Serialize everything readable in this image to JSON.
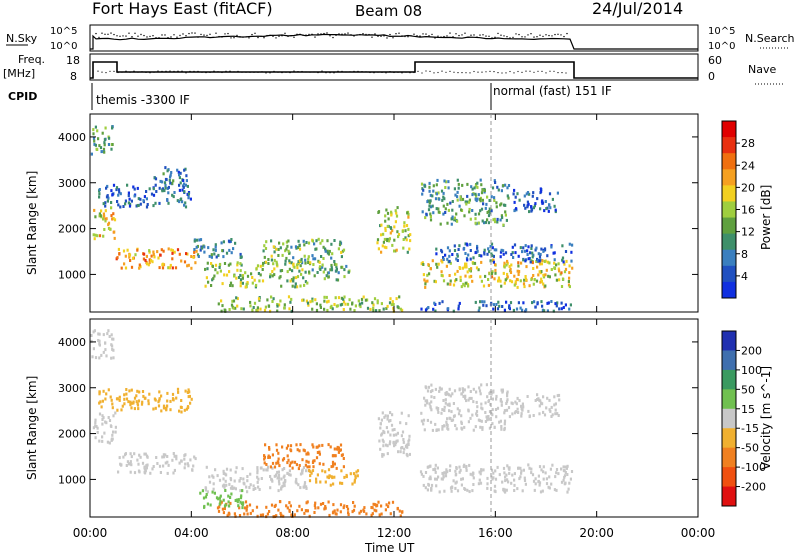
{
  "header": {
    "station": "Fort Hays East (fitACF)",
    "beam": "Beam 08",
    "date": "24/Jul/2014"
  },
  "nsky_panel": {
    "left_label": "N.Sky",
    "left_ticks": [
      "10^5",
      "10^0"
    ],
    "right_ticks": [
      "10^5",
      "10^0"
    ],
    "right_label": "N.Search"
  },
  "freq_panel": {
    "left_label_1": "Freq.",
    "left_label_2": "[MHz]",
    "left_ticks": [
      "18",
      "8"
    ],
    "right_ticks": [
      "60",
      "0"
    ],
    "right_label": "Nave"
  },
  "cpid_panel": {
    "label": "CPID",
    "mode_1": "themis -3300 IF",
    "mode_2": "normal (fast) 151 IF"
  },
  "colors": {
    "scale": [
      "#1030e0",
      "#2050c0",
      "#3a7fbf",
      "#3e8f6a",
      "#5fa03f",
      "#9fce3f",
      "#f2d020",
      "#f5a020",
      "#f07010",
      "#e83010",
      "#e00000"
    ],
    "velocity": [
      "#e01010",
      "#f05010",
      "#f08020",
      "#f0b030",
      "#c8c8c8",
      "#70c050",
      "#3a9a60",
      "#3f6fae",
      "#2030b0"
    ]
  },
  "chart_data": [
    {
      "type": "heatmap",
      "name": "power",
      "ylabel": "Slant Range [km]",
      "yticks": [
        "1000",
        "2000",
        "3000",
        "4000"
      ],
      "ylim": [
        180,
        4500
      ],
      "xlim": [
        "00:00",
        "24:00"
      ],
      "colorbar_label": "Power [dB]",
      "colorbar_ticks": [
        "4",
        "8",
        "12",
        "16",
        "20",
        "24",
        "28"
      ],
      "colorbar_range": [
        0,
        30
      ],
      "blobs": [
        {
          "t": [
            0.0,
            0.9
          ],
          "r": [
            3650,
            4300
          ],
          "v": 11
        },
        {
          "t": [
            0.1,
            1.0
          ],
          "r": [
            1800,
            2500
          ],
          "v": 18
        },
        {
          "t": [
            1.0,
            4.2
          ],
          "r": [
            1150,
            1600
          ],
          "v": 21
        },
        {
          "t": [
            0.3,
            4.0
          ],
          "r": [
            2500,
            3000
          ],
          "v": 6
        },
        {
          "t": [
            2.5,
            3.8
          ],
          "r": [
            2900,
            3400
          ],
          "v": 7
        },
        {
          "t": [
            4.0,
            6.0
          ],
          "r": [
            1400,
            1800
          ],
          "v": 8
        },
        {
          "t": [
            4.5,
            8.6
          ],
          "r": [
            750,
            1300
          ],
          "v": 14
        },
        {
          "t": [
            6.8,
            10.0
          ],
          "r": [
            1250,
            1800
          ],
          "v": 12
        },
        {
          "t": [
            8.6,
            10.6
          ],
          "r": [
            900,
            1250
          ],
          "v": 11
        },
        {
          "t": [
            5.0,
            12.3
          ],
          "r": [
            220,
            550
          ],
          "v": 14
        },
        {
          "t": [
            11.3,
            12.6
          ],
          "r": [
            1500,
            2500
          ],
          "v": 15
        },
        {
          "t": [
            13.0,
            16.5
          ],
          "r": [
            2100,
            3100
          ],
          "v": 10
        },
        {
          "t": [
            13.0,
            19.0
          ],
          "r": [
            750,
            1350
          ],
          "v": 17
        },
        {
          "t": [
            13.5,
            19.0
          ],
          "r": [
            1300,
            1700
          ],
          "v": 5
        },
        {
          "t": [
            16.5,
            18.5
          ],
          "r": [
            2400,
            2900
          ],
          "v": 5
        },
        {
          "t": [
            13.0,
            19.0
          ],
          "r": [
            230,
            450
          ],
          "v": 5
        }
      ]
    },
    {
      "type": "heatmap",
      "name": "velocity",
      "ylabel": "Slant Range [km]",
      "yticks": [
        "1000",
        "2000",
        "3000",
        "4000"
      ],
      "ylim": [
        180,
        4500
      ],
      "xlabel": "Time UT",
      "xticks": [
        "00:00",
        "04:00",
        "08:00",
        "12:00",
        "16:00",
        "20:00",
        "00:00"
      ],
      "xlim": [
        "00:00",
        "24:00"
      ],
      "colorbar_label": "Velocity [m s^-1]",
      "colorbar_ticks": [
        "-200",
        "-100",
        "-50",
        "-15",
        "15",
        "50",
        "100",
        "200"
      ],
      "colorbar_range": [
        -250,
        250
      ],
      "blobs": [
        {
          "t": [
            0.0,
            0.9
          ],
          "r": [
            3650,
            4300
          ],
          "v": 0
        },
        {
          "t": [
            0.1,
            1.0
          ],
          "r": [
            1800,
            2500
          ],
          "v": -5
        },
        {
          "t": [
            1.0,
            4.2
          ],
          "r": [
            1150,
            1600
          ],
          "v": 0
        },
        {
          "t": [
            0.3,
            4.0
          ],
          "r": [
            2500,
            3000
          ],
          "v": -40
        },
        {
          "t": [
            4.5,
            8.6
          ],
          "r": [
            750,
            1300
          ],
          "v": 2
        },
        {
          "t": [
            6.8,
            10.0
          ],
          "r": [
            1250,
            1800
          ],
          "v": -60
        },
        {
          "t": [
            8.6,
            10.6
          ],
          "r": [
            900,
            1250
          ],
          "v": -30
        },
        {
          "t": [
            5.0,
            12.3
          ],
          "r": [
            220,
            550
          ],
          "v": -70
        },
        {
          "t": [
            11.3,
            12.6
          ],
          "r": [
            1500,
            2500
          ],
          "v": 5
        },
        {
          "t": [
            13.0,
            16.5
          ],
          "r": [
            2100,
            3100
          ],
          "v": 2
        },
        {
          "t": [
            13.0,
            19.0
          ],
          "r": [
            750,
            1350
          ],
          "v": 0
        },
        {
          "t": [
            16.5,
            18.5
          ],
          "r": [
            2400,
            2900
          ],
          "v": 0
        },
        {
          "t": [
            4.2,
            6.0
          ],
          "r": [
            400,
            800
          ],
          "v": 40
        }
      ]
    }
  ]
}
